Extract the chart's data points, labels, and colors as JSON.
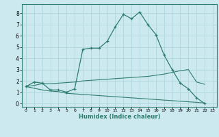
{
  "title": "",
  "xlabel": "Humidex (Indice chaleur)",
  "ylabel": "",
  "bg_color": "#cce9f0",
  "grid_color": "#b0d5de",
  "line_color": "#2e7d6e",
  "x_ticks": [
    0,
    1,
    2,
    3,
    4,
    5,
    6,
    7,
    8,
    9,
    10,
    11,
    12,
    13,
    14,
    15,
    16,
    17,
    18,
    19,
    20,
    21,
    22,
    23
  ],
  "y_ticks": [
    0,
    1,
    2,
    3,
    4,
    5,
    6,
    7,
    8
  ],
  "ylim": [
    -0.3,
    8.8
  ],
  "xlim": [
    -0.5,
    23.5
  ],
  "line1_x": [
    0,
    1,
    2,
    3,
    4,
    5,
    6,
    7,
    8,
    9,
    10,
    11,
    12,
    13,
    14,
    15,
    16,
    17,
    18,
    19,
    20,
    21,
    22
  ],
  "line1_y": [
    1.5,
    1.9,
    1.8,
    1.2,
    1.2,
    1.0,
    1.3,
    4.8,
    4.9,
    4.9,
    5.5,
    6.8,
    7.9,
    7.5,
    8.1,
    7.0,
    6.1,
    4.3,
    3.0,
    1.8,
    1.3,
    0.5,
    0.0
  ],
  "line2_x": [
    0,
    1,
    2,
    3,
    4,
    5,
    6,
    7,
    8,
    9,
    10,
    11,
    12,
    13,
    14,
    15,
    16,
    17,
    18,
    19,
    20,
    21,
    22
  ],
  "line2_y": [
    1.5,
    1.6,
    1.75,
    1.75,
    1.8,
    1.85,
    1.9,
    2.0,
    2.05,
    2.1,
    2.15,
    2.2,
    2.25,
    2.3,
    2.35,
    2.4,
    2.5,
    2.6,
    2.75,
    2.9,
    3.0,
    1.9,
    1.7
  ],
  "line3_x": [
    0,
    1,
    2,
    3,
    4,
    5,
    6,
    7,
    8,
    9,
    10,
    11,
    12,
    13,
    14,
    15,
    16,
    17,
    18,
    19,
    20,
    21,
    22
  ],
  "line3_y": [
    1.5,
    1.35,
    1.2,
    1.1,
    1.05,
    0.9,
    0.85,
    0.8,
    0.75,
    0.7,
    0.65,
    0.6,
    0.55,
    0.5,
    0.45,
    0.4,
    0.35,
    0.3,
    0.25,
    0.2,
    0.15,
    0.1,
    0.05
  ]
}
